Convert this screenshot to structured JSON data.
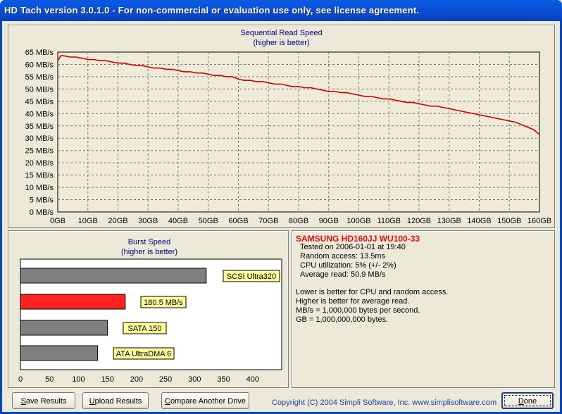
{
  "window": {
    "title": "HD Tach version 3.0.1.0  - For non-commercial or evaluation use only, see license agreement."
  },
  "colors": {
    "accent": "#cc0000",
    "plot_bg": "#f0ebd8",
    "bar_gray": "#808080",
    "label_bg": "#ffff99",
    "title_blue": "#00008b"
  },
  "sequential": {
    "title_line1": "Sequential Read Speed",
    "title_line2": "(higher is better)"
  },
  "burst": {
    "title_line1": "Burst Speed",
    "title_line2": "(higher is better)"
  },
  "chart_data": [
    {
      "type": "line",
      "title": "Sequential Read Speed",
      "subtitle": "(higher is better)",
      "xlabel": "",
      "ylabel": "",
      "x_tick_labels": [
        "0GB",
        "10GB",
        "20GB",
        "30GB",
        "40GB",
        "50GB",
        "60GB",
        "70GB",
        "80GB",
        "90GB",
        "100GB",
        "110GB",
        "120GB",
        "130GB",
        "140GB",
        "150GB",
        "160GB"
      ],
      "y_tick_labels": [
        "0 MB/s",
        "5 MB/s",
        "10 MB/s",
        "15 MB/s",
        "20 MB/s",
        "25 MB/s",
        "30 MB/s",
        "35 MB/s",
        "40 MB/s",
        "45 MB/s",
        "50 MB/s",
        "55 MB/s",
        "60 MB/s",
        "65 MB/s"
      ],
      "xlim": [
        0,
        160
      ],
      "ylim": [
        0,
        65
      ],
      "grid": true,
      "series": [
        {
          "color": "#cc0000",
          "x": [
            0,
            1,
            2,
            4,
            6,
            8,
            10,
            12,
            14,
            16,
            18,
            20,
            22,
            24,
            26,
            28,
            30,
            32,
            34,
            36,
            38,
            40,
            42,
            44,
            46,
            48,
            50,
            52,
            54,
            56,
            58,
            60,
            62,
            64,
            66,
            68,
            70,
            72,
            74,
            76,
            78,
            80,
            82,
            84,
            86,
            88,
            90,
            92,
            94,
            96,
            98,
            100,
            102,
            104,
            106,
            108,
            110,
            112,
            114,
            116,
            118,
            120,
            122,
            124,
            126,
            128,
            130,
            132,
            134,
            136,
            138,
            140,
            142,
            144,
            146,
            148,
            150,
            152,
            154,
            156,
            158,
            160
          ],
          "y": [
            61.5,
            63.5,
            63.5,
            63,
            63,
            62.5,
            62,
            62,
            61.5,
            61.5,
            61,
            60.5,
            60.5,
            60,
            59.5,
            59.5,
            59,
            58.5,
            58.5,
            58,
            58,
            57.5,
            57,
            57,
            56.5,
            56.5,
            56,
            55.5,
            55.5,
            55,
            55,
            54,
            53.5,
            53.5,
            53,
            53,
            52.5,
            52,
            52,
            51.5,
            51,
            51,
            50.5,
            50.5,
            50,
            49.5,
            49,
            49,
            48.5,
            48.5,
            48,
            47.5,
            47,
            47,
            46.5,
            46,
            46,
            45.5,
            45,
            44.5,
            44.5,
            44,
            43.5,
            43,
            43,
            42.5,
            42,
            41.5,
            41,
            40.5,
            40,
            39.5,
            39,
            38.5,
            38,
            37.5,
            37,
            36.5,
            35.5,
            34.5,
            33.5,
            31.5
          ]
        }
      ]
    },
    {
      "type": "bar",
      "title": "Burst Speed",
      "subtitle": "(higher is better)",
      "orientation": "horizontal",
      "xlim": [
        0,
        450
      ],
      "x_tick_labels": [
        "0",
        "50",
        "100",
        "150",
        "200",
        "250",
        "300",
        "350",
        "400"
      ],
      "categories": [
        "SCSI Ultra320",
        "180.5 MB/s",
        "SATA 150",
        "ATA UltraDMA 6"
      ],
      "values": [
        320,
        180.5,
        150,
        133
      ],
      "bar_colors": [
        "#808080",
        "#ff2020",
        "#808080",
        "#808080"
      ]
    }
  ],
  "info": {
    "drive_name": "SAMSUNG HD160JJ WU100-33",
    "tested_on": "Tested on 2006-01-01 at 19:40",
    "random_access": "Random access: 13.5ms",
    "cpu_utilization": "CPU utilization: 5% (+/- 2%)",
    "average_read": "Average read: 50.9 MB/s",
    "note1": "Lower is better for CPU and random access.",
    "note2": "Higher is better for average read.",
    "note3": "MB/s = 1,000,000 bytes per second.",
    "note4": "GB = 1,000,000,000 bytes."
  },
  "buttons": {
    "save_prefix": "S",
    "save_rest": "ave Results",
    "upload_prefix": "U",
    "upload_rest": "pload Results",
    "compare_prefix": "C",
    "compare_rest": "ompare Another Drive",
    "done_prefix": "D",
    "done_rest": "one"
  },
  "copyright": "Copyright (C) 2004 Simpli Software, Inc. www.simplisoftware.com"
}
